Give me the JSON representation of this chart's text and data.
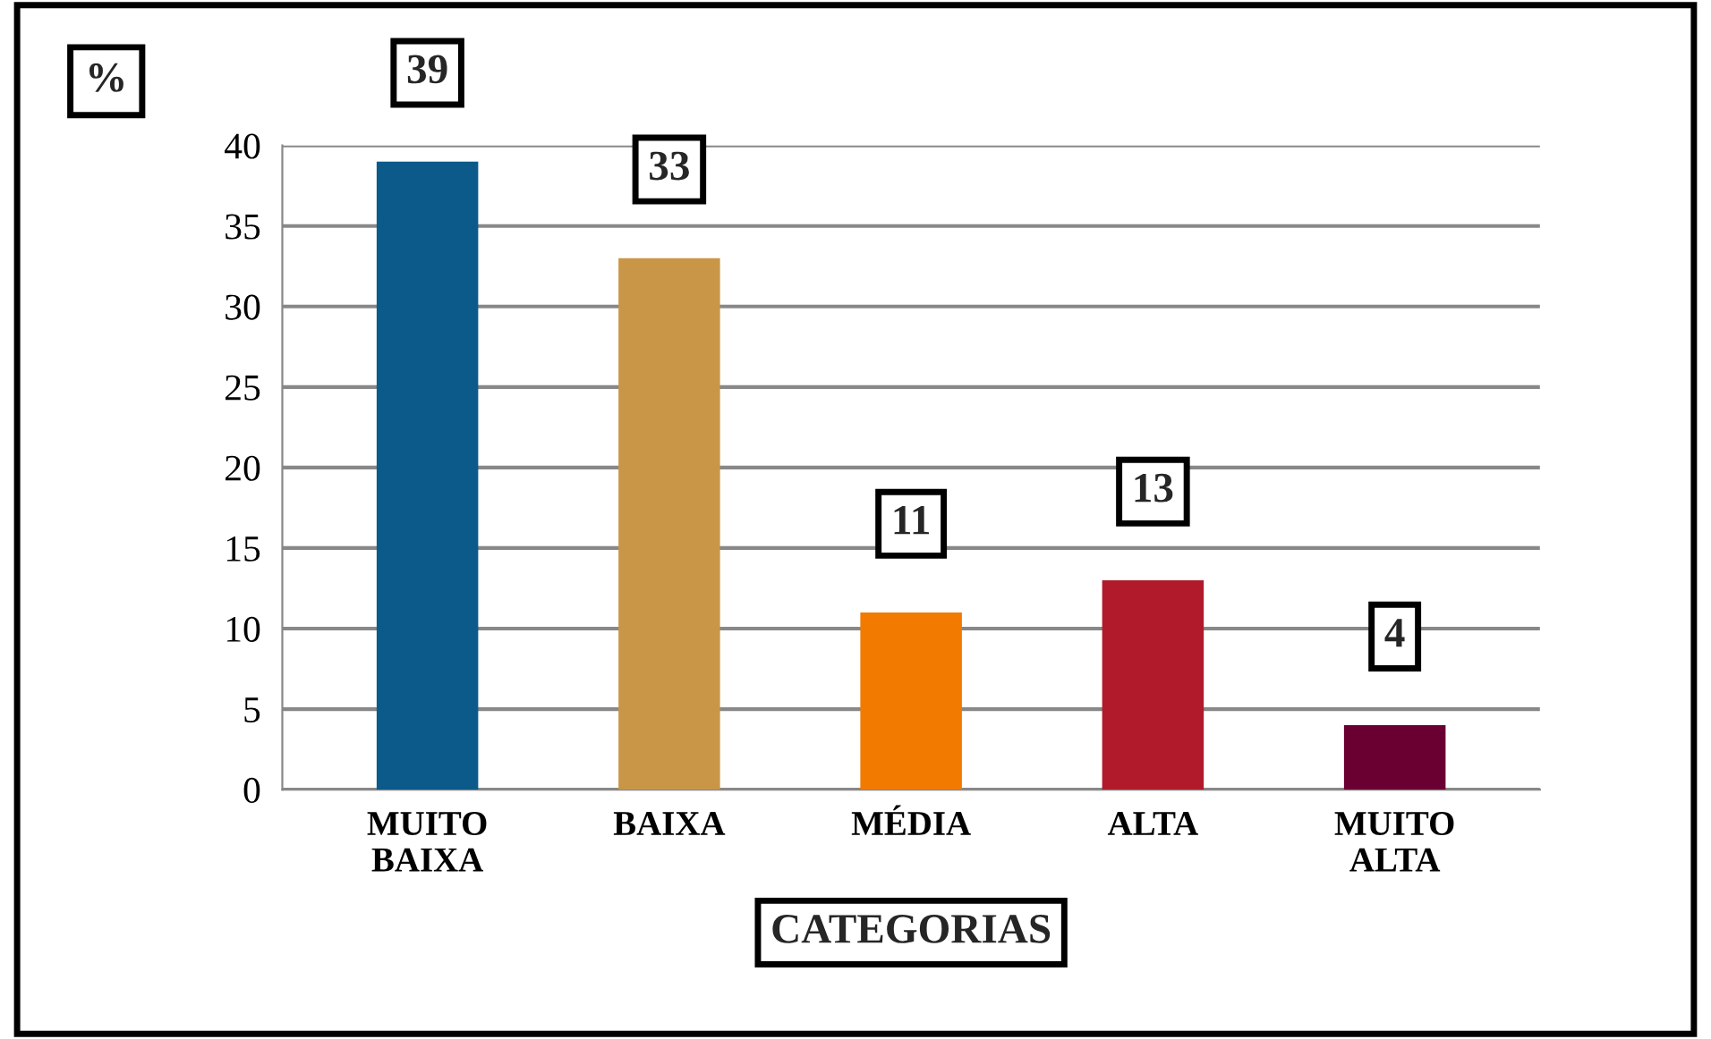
{
  "chart_data": {
    "type": "bar",
    "xlabel": "CATEGORIAS",
    "ylabel": "%",
    "categories": [
      "MUITO\nBAIXA",
      "BAIXA",
      "MÉDIA",
      "ALTA",
      "MUITO\nALTA"
    ],
    "values": [
      39,
      33,
      11,
      13,
      4
    ],
    "colors": [
      "#0b5a8a",
      "#c99648",
      "#f27a00",
      "#b01a2a",
      "#6a0032"
    ],
    "ylim": [
      0,
      40
    ],
    "yticks": [
      0,
      5,
      10,
      15,
      20,
      25,
      30,
      35,
      40
    ],
    "grid": "y",
    "data_labels": true
  }
}
